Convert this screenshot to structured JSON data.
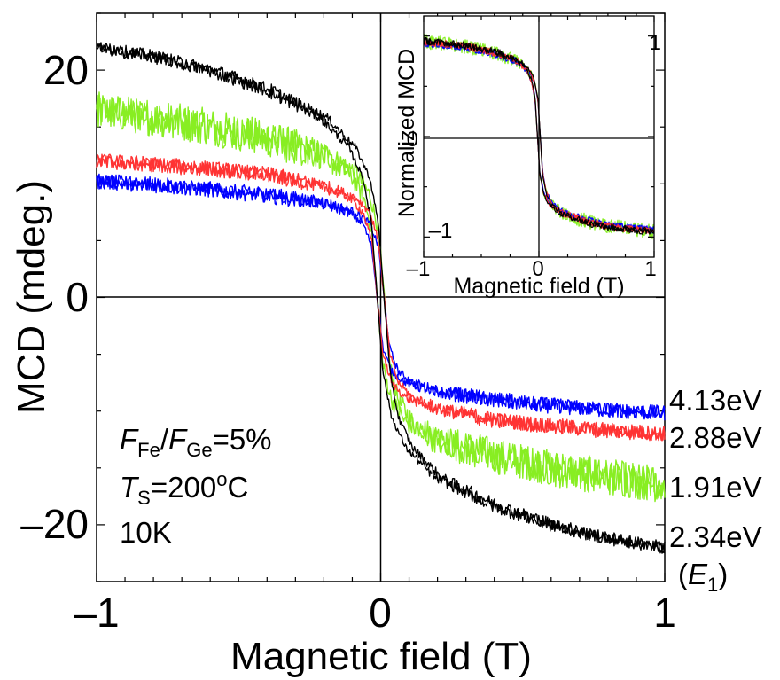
{
  "chart_data": [
    {
      "type": "line",
      "xlabel": "Magnetic field (T)",
      "ylabel": "MCD (mdeg.)",
      "xlim": [
        -1,
        1
      ],
      "ylim": [
        -25,
        25
      ],
      "xticks": [
        -1,
        0,
        1
      ],
      "xtick_labels": [
        "–1",
        "0",
        "1"
      ],
      "yticks": [
        -20,
        0,
        20
      ],
      "ytick_labels": [
        "–20",
        "0",
        "20"
      ],
      "grid": false,
      "zero_lines": true,
      "x": [
        -1.0,
        -0.8,
        -0.6,
        -0.4,
        -0.2,
        -0.1,
        -0.05,
        -0.02,
        0.0,
        0.02,
        0.05,
        0.1,
        0.2,
        0.4,
        0.6,
        0.8,
        1.0
      ],
      "series": [
        {
          "name": "4.13eV",
          "color": "#0000ff",
          "values": [
            10.2,
            9.9,
            9.5,
            9.0,
            8.3,
            7.5,
            6.5,
            4.5,
            0.0,
            -4.5,
            -6.5,
            -7.5,
            -8.3,
            -9.0,
            -9.5,
            -9.9,
            -10.2
          ]
        },
        {
          "name": "2.88eV",
          "color": "#ff3333",
          "values": [
            12.0,
            11.7,
            11.3,
            10.8,
            9.8,
            8.8,
            7.5,
            5.0,
            0.0,
            -5.0,
            -7.5,
            -8.8,
            -9.8,
            -10.8,
            -11.3,
            -11.7,
            -12.0
          ]
        },
        {
          "name": "1.91eV",
          "color": "#88ee22",
          "values": [
            16.5,
            15.8,
            15.0,
            14.0,
            12.5,
            11.0,
            9.0,
            6.0,
            0.0,
            -6.0,
            -9.0,
            -11.0,
            -12.5,
            -14.0,
            -15.0,
            -15.8,
            -16.5
          ]
        },
        {
          "name": "2.34eV",
          "color": "#000000",
          "values": [
            22.0,
            21.2,
            20.0,
            18.3,
            15.8,
            13.2,
            10.5,
            6.5,
            0.0,
            -6.5,
            -10.5,
            -13.2,
            -15.8,
            -18.3,
            -20.0,
            -21.2,
            -22.0
          ]
        }
      ],
      "series_labels": [
        "4.13eV",
        "2.88eV",
        "1.91eV",
        "2.34eV"
      ],
      "series_sublabel": "(E1)",
      "annotations": [
        "FFe/FGe=5%",
        "TS=200oC",
        "10K"
      ]
    },
    {
      "type": "line",
      "xlabel": "Magnetic field (T)",
      "ylabel": "Normalized MCD",
      "xlim": [
        -1,
        1
      ],
      "ylim": [
        -1.2,
        1.2
      ],
      "xticks": [
        -1,
        0,
        1
      ],
      "xtick_labels": [
        "–1",
        "0",
        "1"
      ],
      "yticks": [
        -1,
        0,
        1
      ],
      "ytick_labels": [
        "–1",
        "0",
        "1"
      ],
      "grid": false,
      "zero_lines": true,
      "x": [
        -1.0,
        -0.8,
        -0.6,
        -0.4,
        -0.2,
        -0.1,
        -0.05,
        -0.02,
        0.0,
        0.02,
        0.05,
        0.1,
        0.2,
        0.4,
        0.6,
        0.8,
        1.0
      ],
      "series": [
        {
          "color": "#88ee22",
          "values": [
            0.95,
            0.92,
            0.89,
            0.84,
            0.76,
            0.67,
            0.55,
            0.36,
            0.0,
            -0.36,
            -0.55,
            -0.67,
            -0.76,
            -0.84,
            -0.89,
            -0.92,
            -0.95
          ]
        },
        {
          "color": "#0000ff",
          "values": [
            0.93,
            0.91,
            0.88,
            0.83,
            0.75,
            0.66,
            0.54,
            0.35,
            0.0,
            -0.35,
            -0.54,
            -0.66,
            -0.75,
            -0.83,
            -0.88,
            -0.91,
            -0.93
          ]
        },
        {
          "color": "#ff3333",
          "values": [
            0.94,
            0.92,
            0.89,
            0.84,
            0.76,
            0.67,
            0.55,
            0.36,
            0.0,
            -0.36,
            -0.55,
            -0.67,
            -0.76,
            -0.84,
            -0.89,
            -0.92,
            -0.94
          ]
        },
        {
          "color": "#000000",
          "values": [
            0.95,
            0.93,
            0.9,
            0.85,
            0.77,
            0.68,
            0.56,
            0.37,
            0.0,
            -0.37,
            -0.56,
            -0.68,
            -0.77,
            -0.85,
            -0.9,
            -0.93,
            -0.95
          ]
        }
      ]
    }
  ]
}
